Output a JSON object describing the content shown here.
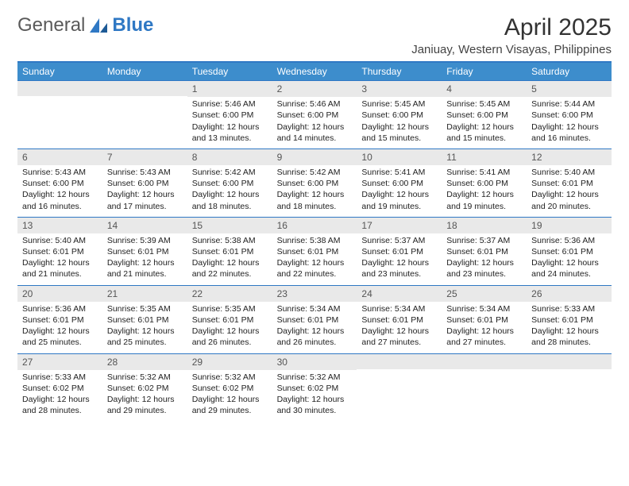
{
  "logo": {
    "text1": "General",
    "text2": "Blue"
  },
  "title": "April 2025",
  "location": "Janiuay, Western Visayas, Philippines",
  "colors": {
    "header_bar": "#3d8dcc",
    "border": "#2f78c4",
    "datebar_bg": "#e9e9e9",
    "text": "#222222",
    "logo_gray": "#5a5a5a",
    "logo_blue": "#2f78c4",
    "white": "#ffffff"
  },
  "day_headers": [
    "Sunday",
    "Monday",
    "Tuesday",
    "Wednesday",
    "Thursday",
    "Friday",
    "Saturday"
  ],
  "weeks": [
    [
      null,
      null,
      {
        "d": "1",
        "sr": "Sunrise: 5:46 AM",
        "ss": "Sunset: 6:00 PM",
        "dl1": "Daylight: 12 hours",
        "dl2": "and 13 minutes."
      },
      {
        "d": "2",
        "sr": "Sunrise: 5:46 AM",
        "ss": "Sunset: 6:00 PM",
        "dl1": "Daylight: 12 hours",
        "dl2": "and 14 minutes."
      },
      {
        "d": "3",
        "sr": "Sunrise: 5:45 AM",
        "ss": "Sunset: 6:00 PM",
        "dl1": "Daylight: 12 hours",
        "dl2": "and 15 minutes."
      },
      {
        "d": "4",
        "sr": "Sunrise: 5:45 AM",
        "ss": "Sunset: 6:00 PM",
        "dl1": "Daylight: 12 hours",
        "dl2": "and 15 minutes."
      },
      {
        "d": "5",
        "sr": "Sunrise: 5:44 AM",
        "ss": "Sunset: 6:00 PM",
        "dl1": "Daylight: 12 hours",
        "dl2": "and 16 minutes."
      }
    ],
    [
      {
        "d": "6",
        "sr": "Sunrise: 5:43 AM",
        "ss": "Sunset: 6:00 PM",
        "dl1": "Daylight: 12 hours",
        "dl2": "and 16 minutes."
      },
      {
        "d": "7",
        "sr": "Sunrise: 5:43 AM",
        "ss": "Sunset: 6:00 PM",
        "dl1": "Daylight: 12 hours",
        "dl2": "and 17 minutes."
      },
      {
        "d": "8",
        "sr": "Sunrise: 5:42 AM",
        "ss": "Sunset: 6:00 PM",
        "dl1": "Daylight: 12 hours",
        "dl2": "and 18 minutes."
      },
      {
        "d": "9",
        "sr": "Sunrise: 5:42 AM",
        "ss": "Sunset: 6:00 PM",
        "dl1": "Daylight: 12 hours",
        "dl2": "and 18 minutes."
      },
      {
        "d": "10",
        "sr": "Sunrise: 5:41 AM",
        "ss": "Sunset: 6:00 PM",
        "dl1": "Daylight: 12 hours",
        "dl2": "and 19 minutes."
      },
      {
        "d": "11",
        "sr": "Sunrise: 5:41 AM",
        "ss": "Sunset: 6:00 PM",
        "dl1": "Daylight: 12 hours",
        "dl2": "and 19 minutes."
      },
      {
        "d": "12",
        "sr": "Sunrise: 5:40 AM",
        "ss": "Sunset: 6:01 PM",
        "dl1": "Daylight: 12 hours",
        "dl2": "and 20 minutes."
      }
    ],
    [
      {
        "d": "13",
        "sr": "Sunrise: 5:40 AM",
        "ss": "Sunset: 6:01 PM",
        "dl1": "Daylight: 12 hours",
        "dl2": "and 21 minutes."
      },
      {
        "d": "14",
        "sr": "Sunrise: 5:39 AM",
        "ss": "Sunset: 6:01 PM",
        "dl1": "Daylight: 12 hours",
        "dl2": "and 21 minutes."
      },
      {
        "d": "15",
        "sr": "Sunrise: 5:38 AM",
        "ss": "Sunset: 6:01 PM",
        "dl1": "Daylight: 12 hours",
        "dl2": "and 22 minutes."
      },
      {
        "d": "16",
        "sr": "Sunrise: 5:38 AM",
        "ss": "Sunset: 6:01 PM",
        "dl1": "Daylight: 12 hours",
        "dl2": "and 22 minutes."
      },
      {
        "d": "17",
        "sr": "Sunrise: 5:37 AM",
        "ss": "Sunset: 6:01 PM",
        "dl1": "Daylight: 12 hours",
        "dl2": "and 23 minutes."
      },
      {
        "d": "18",
        "sr": "Sunrise: 5:37 AM",
        "ss": "Sunset: 6:01 PM",
        "dl1": "Daylight: 12 hours",
        "dl2": "and 23 minutes."
      },
      {
        "d": "19",
        "sr": "Sunrise: 5:36 AM",
        "ss": "Sunset: 6:01 PM",
        "dl1": "Daylight: 12 hours",
        "dl2": "and 24 minutes."
      }
    ],
    [
      {
        "d": "20",
        "sr": "Sunrise: 5:36 AM",
        "ss": "Sunset: 6:01 PM",
        "dl1": "Daylight: 12 hours",
        "dl2": "and 25 minutes."
      },
      {
        "d": "21",
        "sr": "Sunrise: 5:35 AM",
        "ss": "Sunset: 6:01 PM",
        "dl1": "Daylight: 12 hours",
        "dl2": "and 25 minutes."
      },
      {
        "d": "22",
        "sr": "Sunrise: 5:35 AM",
        "ss": "Sunset: 6:01 PM",
        "dl1": "Daylight: 12 hours",
        "dl2": "and 26 minutes."
      },
      {
        "d": "23",
        "sr": "Sunrise: 5:34 AM",
        "ss": "Sunset: 6:01 PM",
        "dl1": "Daylight: 12 hours",
        "dl2": "and 26 minutes."
      },
      {
        "d": "24",
        "sr": "Sunrise: 5:34 AM",
        "ss": "Sunset: 6:01 PM",
        "dl1": "Daylight: 12 hours",
        "dl2": "and 27 minutes."
      },
      {
        "d": "25",
        "sr": "Sunrise: 5:34 AM",
        "ss": "Sunset: 6:01 PM",
        "dl1": "Daylight: 12 hours",
        "dl2": "and 27 minutes."
      },
      {
        "d": "26",
        "sr": "Sunrise: 5:33 AM",
        "ss": "Sunset: 6:01 PM",
        "dl1": "Daylight: 12 hours",
        "dl2": "and 28 minutes."
      }
    ],
    [
      {
        "d": "27",
        "sr": "Sunrise: 5:33 AM",
        "ss": "Sunset: 6:02 PM",
        "dl1": "Daylight: 12 hours",
        "dl2": "and 28 minutes."
      },
      {
        "d": "28",
        "sr": "Sunrise: 5:32 AM",
        "ss": "Sunset: 6:02 PM",
        "dl1": "Daylight: 12 hours",
        "dl2": "and 29 minutes."
      },
      {
        "d": "29",
        "sr": "Sunrise: 5:32 AM",
        "ss": "Sunset: 6:02 PM",
        "dl1": "Daylight: 12 hours",
        "dl2": "and 29 minutes."
      },
      {
        "d": "30",
        "sr": "Sunrise: 5:32 AM",
        "ss": "Sunset: 6:02 PM",
        "dl1": "Daylight: 12 hours",
        "dl2": "and 30 minutes."
      },
      null,
      null,
      null
    ]
  ]
}
